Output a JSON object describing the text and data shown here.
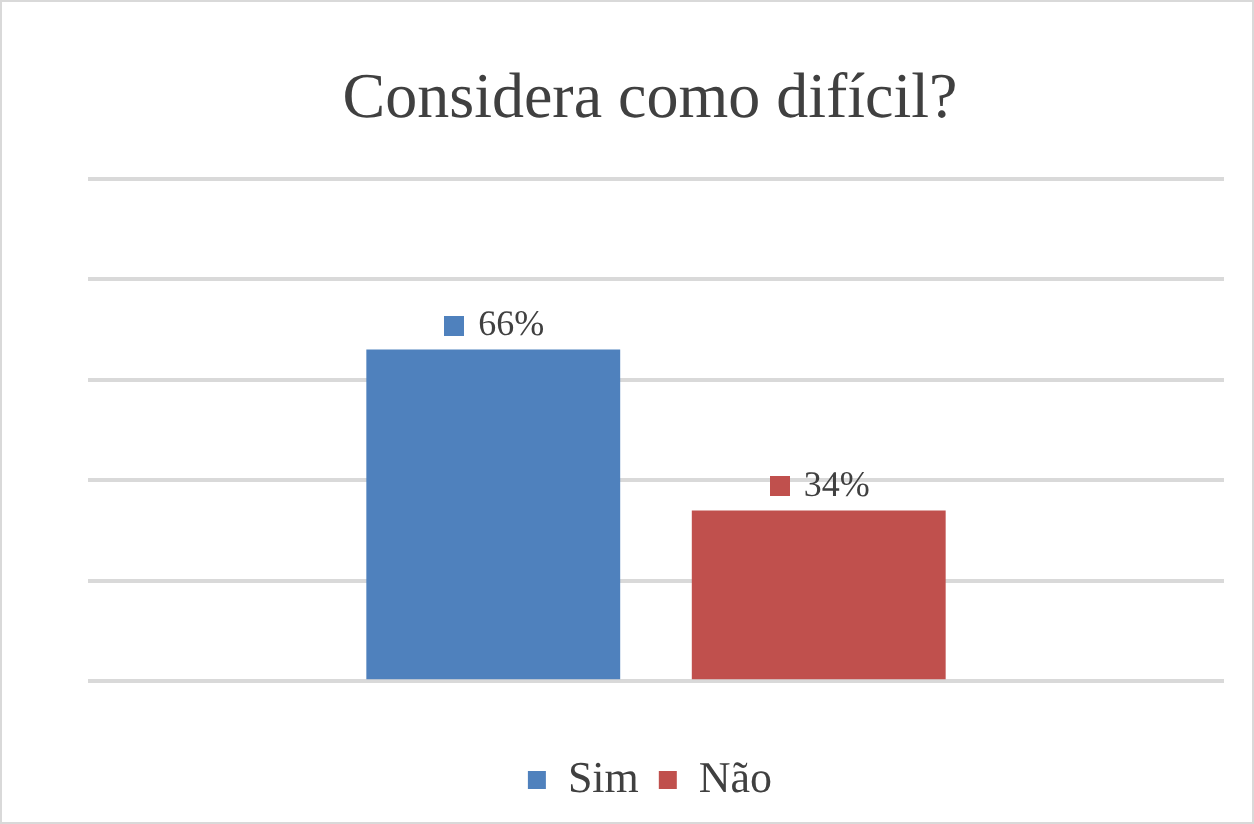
{
  "chart_data": {
    "type": "bar",
    "title": "Considera como difícil?",
    "categories": [
      null
    ],
    "series": [
      {
        "name": "Sim",
        "color": "#4f81bd",
        "values": [
          66
        ],
        "value_labels": [
          "66%"
        ]
      },
      {
        "name": "Não",
        "color": "#c0504d",
        "values": [
          34
        ],
        "value_labels": [
          "34%"
        ]
      }
    ],
    "ylim": [
      0,
      100
    ],
    "yticks": [
      {
        "value": 0,
        "label": null
      },
      {
        "value": 20,
        "label": null
      },
      {
        "value": 40,
        "label": null
      },
      {
        "value": 60,
        "label": null
      },
      {
        "value": 80,
        "label": null
      },
      {
        "value": 100,
        "label": null
      }
    ],
    "grid": "y",
    "legend": "bottom"
  }
}
